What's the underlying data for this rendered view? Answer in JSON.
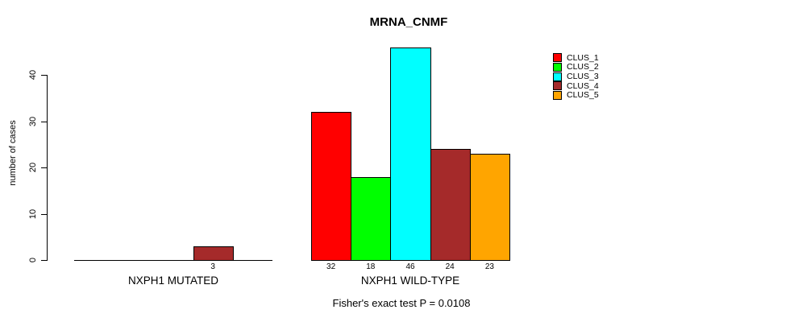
{
  "title": "MRNA_CNMF",
  "footnote": "Fisher's exact test P = 0.0108",
  "chart_data": {
    "type": "bar",
    "title": "MRNA_CNMF",
    "xlabel": "",
    "ylabel": "number of cases",
    "yticks": [
      0,
      10,
      20,
      30,
      40
    ],
    "ylim": [
      0,
      46
    ],
    "grid": false,
    "legend_position": "top-right",
    "bar_border_color": "#000000",
    "series": [
      "CLUS_1",
      "CLUS_2",
      "CLUS_3",
      "CLUS_4",
      "CLUS_5"
    ],
    "colors": [
      "#ff0000",
      "#00ff00",
      "#00ffff",
      "#a52a2a",
      "#ffa500"
    ],
    "groups": [
      {
        "label": "NXPH1 MUTATED",
        "values": [
          0,
          0,
          0,
          3,
          0
        ]
      },
      {
        "label": "NXPH1 WILD-TYPE",
        "values": [
          32,
          18,
          46,
          24,
          23
        ]
      }
    ],
    "annotation": "Fisher's exact test P = 0.0108"
  },
  "legend": {
    "items": [
      {
        "label": "CLUS_1",
        "color": "#ff0000"
      },
      {
        "label": "CLUS_2",
        "color": "#00ff00"
      },
      {
        "label": "CLUS_3",
        "color": "#00ffff"
      },
      {
        "label": "CLUS_4",
        "color": "#a52a2a"
      },
      {
        "label": "CLUS_5",
        "color": "#ffa500"
      }
    ]
  }
}
